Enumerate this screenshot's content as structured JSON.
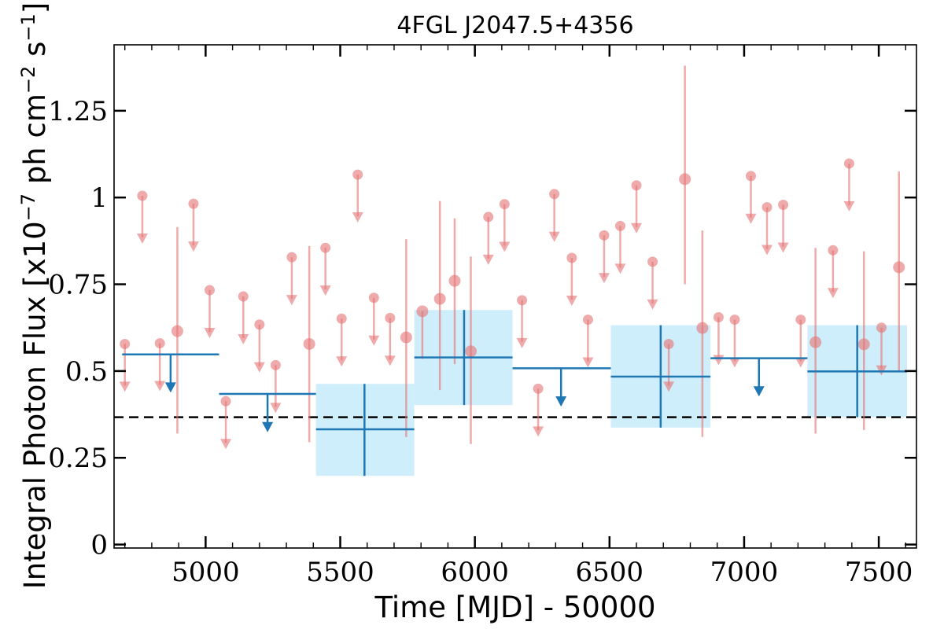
{
  "chart_data": {
    "type": "scatter",
    "title": "4FGL J2047.5+4356",
    "xlabel": "Time [MJD] - 50000",
    "ylabel": "Integral Photon Flux [x10",
    "ylabel_exp1": "−7",
    "ylabel_mid": " ph cm",
    "ylabel_exp2": "−2",
    "ylabel_mid2": " s",
    "ylabel_exp3": "−1",
    "ylabel_end": "]",
    "xlim": [
      4660,
      7640
    ],
    "ylim": [
      -0.01,
      1.44
    ],
    "xticks": [
      5000,
      5500,
      6000,
      6500,
      7000,
      7500
    ],
    "xtick_labels": [
      "5000",
      "5500",
      "6000",
      "6500",
      "7000",
      "7500"
    ],
    "yticks": [
      0,
      0.25,
      0.5,
      0.75,
      1,
      1.25
    ],
    "ytick_labels": [
      "0",
      "0.25",
      "0.5",
      "0.75",
      "1",
      "1.25"
    ],
    "reference_line": {
      "y": 0.367,
      "style": "dashed",
      "color": "#000000"
    },
    "colors": {
      "short_bins": "#e57373",
      "long_bins": "#1f77b4",
      "band_fill": "#cfeefb"
    },
    "series": [
      {
        "color": "#e57373",
        "detections": [
          {
            "x": 4895,
            "y": 0.615,
            "ylo": 0.32,
            "yhi": 0.915
          },
          {
            "x": 5385,
            "y": 0.578,
            "ylo": 0.295,
            "yhi": 0.86
          },
          {
            "x": 5745,
            "y": 0.597,
            "ylo": 0.31,
            "yhi": 0.88
          },
          {
            "x": 5805,
            "y": 0.672,
            "ylo": 0.535,
            "yhi": 0.672
          },
          {
            "x": 5870,
            "y": 0.708,
            "ylo": 0.445,
            "yhi": 0.99
          },
          {
            "x": 5925,
            "y": 0.76,
            "ylo": 0.52,
            "yhi": 0.94
          },
          {
            "x": 5985,
            "y": 0.557,
            "ylo": 0.29,
            "yhi": 0.83
          },
          {
            "x": 6780,
            "y": 1.053,
            "ylo": 0.75,
            "yhi": 1.38
          },
          {
            "x": 6845,
            "y": 0.624,
            "ylo": 0.31,
            "yhi": 0.905
          },
          {
            "x": 7265,
            "y": 0.583,
            "ylo": 0.32,
            "yhi": 0.855
          },
          {
            "x": 7445,
            "y": 0.577,
            "ylo": 0.33,
            "yhi": 0.845
          },
          {
            "x": 7575,
            "y": 0.799,
            "ylo": 0.5,
            "yhi": 1.075
          }
        ],
        "upper_limits": [
          {
            "x": 4700,
            "y": 0.578
          },
          {
            "x": 4765,
            "y": 1.005
          },
          {
            "x": 4830,
            "y": 0.58
          },
          {
            "x": 4955,
            "y": 0.982
          },
          {
            "x": 5015,
            "y": 0.733
          },
          {
            "x": 5075,
            "y": 0.413
          },
          {
            "x": 5140,
            "y": 0.715
          },
          {
            "x": 5200,
            "y": 0.634
          },
          {
            "x": 5260,
            "y": 0.517
          },
          {
            "x": 5320,
            "y": 0.828
          },
          {
            "x": 5445,
            "y": 0.855
          },
          {
            "x": 5505,
            "y": 0.651
          },
          {
            "x": 5565,
            "y": 1.066
          },
          {
            "x": 5625,
            "y": 0.711
          },
          {
            "x": 5685,
            "y": 0.653
          },
          {
            "x": 6050,
            "y": 0.944
          },
          {
            "x": 6110,
            "y": 0.981
          },
          {
            "x": 6175,
            "y": 0.704
          },
          {
            "x": 6235,
            "y": 0.449
          },
          {
            "x": 6295,
            "y": 1.01
          },
          {
            "x": 6360,
            "y": 0.826
          },
          {
            "x": 6420,
            "y": 0.648
          },
          {
            "x": 6480,
            "y": 0.891
          },
          {
            "x": 6540,
            "y": 0.918
          },
          {
            "x": 6600,
            "y": 1.035
          },
          {
            "x": 6660,
            "y": 0.815
          },
          {
            "x": 6720,
            "y": 0.578
          },
          {
            "x": 6905,
            "y": 0.655
          },
          {
            "x": 6965,
            "y": 0.648
          },
          {
            "x": 7025,
            "y": 1.062
          },
          {
            "x": 7085,
            "y": 0.972
          },
          {
            "x": 7145,
            "y": 0.979
          },
          {
            "x": 7210,
            "y": 0.648
          },
          {
            "x": 7330,
            "y": 0.848
          },
          {
            "x": 7390,
            "y": 1.098
          },
          {
            "x": 7510,
            "y": 0.625
          }
        ]
      },
      {
        "color": "#1f77b4",
        "detections": [
          {
            "x0": 5410,
            "x1": 5775,
            "x": 5590,
            "y": 0.332,
            "ylo": 0.198,
            "yhi": 0.463
          },
          {
            "x0": 5775,
            "x1": 6140,
            "x": 5960,
            "y": 0.539,
            "ylo": 0.402,
            "yhi": 0.676
          },
          {
            "x0": 6505,
            "x1": 6875,
            "x": 6690,
            "y": 0.484,
            "ylo": 0.337,
            "yhi": 0.632
          },
          {
            "x0": 7235,
            "x1": 7605,
            "x": 7420,
            "y": 0.499,
            "ylo": 0.367,
            "yhi": 0.632
          }
        ],
        "upper_limits": [
          {
            "x0": 4690,
            "x1": 5050,
            "x": 4870,
            "y": 0.548
          },
          {
            "x0": 5050,
            "x1": 5410,
            "x": 5230,
            "y": 0.434
          },
          {
            "x0": 6140,
            "x1": 6505,
            "x": 6320,
            "y": 0.508
          },
          {
            "x0": 6875,
            "x1": 7235,
            "x": 7055,
            "y": 0.537
          }
        ]
      }
    ]
  }
}
